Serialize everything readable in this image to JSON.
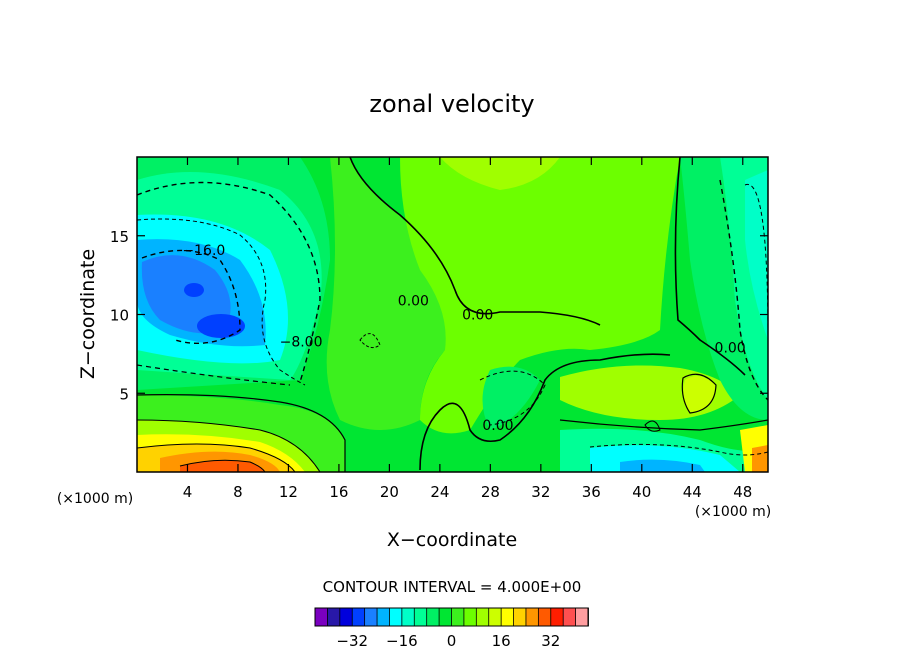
{
  "chart_data": {
    "type": "contour",
    "title": "zonal velocity",
    "xlabel": "X−coordinate",
    "ylabel": "Z−coordinate",
    "x_unit_left": "(×1000 m)",
    "x_unit_right": "(×1000 m)",
    "xlim": [
      0,
      50
    ],
    "ylim": [
      0,
      20
    ],
    "x_ticks": [
      4,
      8,
      12,
      16,
      20,
      24,
      28,
      32,
      36,
      40,
      44,
      48
    ],
    "y_ticks": [
      5,
      10,
      15
    ],
    "contour_interval_text": "CONTOUR INTERVAL = 4.000E+00",
    "colorbar": {
      "levels": [
        -40,
        -36,
        -32,
        -28,
        -24,
        -20,
        -16,
        -12,
        -8,
        -4,
        0,
        4,
        8,
        12,
        16,
        20,
        24,
        28,
        32,
        36,
        40
      ],
      "colors": [
        "#7a00c0",
        "#2818a8",
        "#0000dc",
        "#0040ff",
        "#1a80ff",
        "#00b4ff",
        "#00ffff",
        "#00ffc8",
        "#00ff96",
        "#00f064",
        "#00e632",
        "#3cf01e",
        "#6cff00",
        "#a0ff00",
        "#ccff00",
        "#ffff00",
        "#ffd200",
        "#ff9600",
        "#ff5a00",
        "#ff1e00",
        "#ff5050",
        "#ff9ea0"
      ],
      "tick_values": [
        -32,
        -16,
        0,
        16,
        32
      ],
      "tick_labels": [
        "−32",
        "−16",
        "0",
        "16",
        "32"
      ]
    },
    "contour_labels": [
      {
        "text": "−16.0",
        "x": 5.3,
        "z": 14.1
      },
      {
        "text": "0.00",
        "x": 21.9,
        "z": 10.9
      },
      {
        "text": "0.00",
        "x": 27.0,
        "z": 10.0
      },
      {
        "text": "−8.00",
        "x": 13.0,
        "z": 8.3
      },
      {
        "text": "0.00",
        "x": 47.0,
        "z": 7.9
      },
      {
        "text": "0.00",
        "x": 28.6,
        "z": 3.0
      }
    ]
  }
}
